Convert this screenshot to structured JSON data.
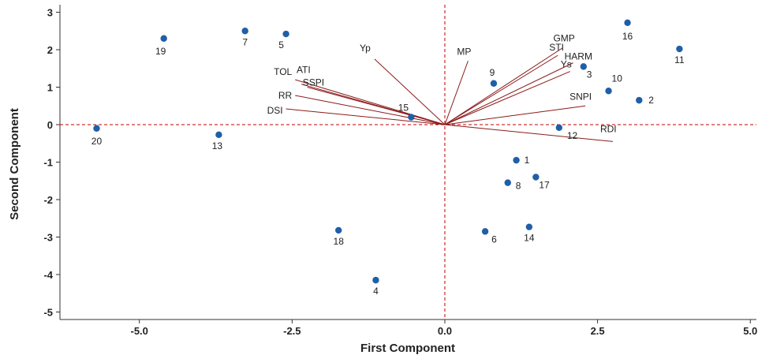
{
  "chart_data": {
    "type": "scatter",
    "subtype": "biplot",
    "title": "",
    "xlabel": "First Component",
    "ylabel": "Second Component",
    "xlim": [
      -6.3,
      5.1
    ],
    "ylim": [
      -5.2,
      3.2
    ],
    "x_ticks": [
      -5.0,
      -2.5,
      0.0,
      2.5,
      5.0
    ],
    "x_tick_labels": [
      "-5.0",
      "-2.5",
      "0.0",
      "2.5",
      "5.0"
    ],
    "y_ticks": [
      3,
      2,
      1,
      0,
      -1,
      -2,
      -3,
      -4,
      -5
    ],
    "y_tick_labels": [
      "3",
      "2",
      "1",
      "0",
      "-1",
      "-2",
      "-3",
      "-4",
      "-5"
    ],
    "reference_lines": {
      "x": 0,
      "y": 0,
      "color": "#c00000",
      "style": "dashed"
    },
    "colors": {
      "point": "#1f5fa8",
      "vector": "#8b1a1a",
      "reference": "#c00000"
    },
    "points": [
      {
        "label": "1",
        "x": 1.17,
        "y": -0.95
      },
      {
        "label": "2",
        "x": 3.18,
        "y": 0.65
      },
      {
        "label": "3",
        "x": 2.27,
        "y": 1.55
      },
      {
        "label": "4",
        "x": -1.13,
        "y": -4.15
      },
      {
        "label": "5",
        "x": -2.6,
        "y": 2.42
      },
      {
        "label": "6",
        "x": 0.66,
        "y": -2.85
      },
      {
        "label": "7",
        "x": -3.27,
        "y": 2.5
      },
      {
        "label": "8",
        "x": 1.03,
        "y": -1.55
      },
      {
        "label": "9",
        "x": 0.8,
        "y": 1.1
      },
      {
        "label": "10",
        "x": 2.68,
        "y": 0.9
      },
      {
        "label": "11",
        "x": 3.84,
        "y": 2.02
      },
      {
        "label": "12",
        "x": 1.87,
        "y": -0.08
      },
      {
        "label": "13",
        "x": -3.7,
        "y": -0.27
      },
      {
        "label": "14",
        "x": 1.38,
        "y": -2.73
      },
      {
        "label": "15",
        "x": -0.55,
        "y": 0.2
      },
      {
        "label": "16",
        "x": 2.99,
        "y": 2.72
      },
      {
        "label": "17",
        "x": 1.49,
        "y": -1.4
      },
      {
        "label": "18",
        "x": -1.74,
        "y": -2.82
      },
      {
        "label": "19",
        "x": -4.6,
        "y": 2.3
      },
      {
        "label": "20",
        "x": -5.7,
        "y": -0.1
      }
    ],
    "vectors": [
      {
        "label": "Yp",
        "x": -1.15,
        "y": 1.75
      },
      {
        "label": "MP",
        "x": 0.38,
        "y": 1.7
      },
      {
        "label": "GMP",
        "x": 1.93,
        "y": 2.05
      },
      {
        "label": "STI",
        "x": 1.85,
        "y": 1.85
      },
      {
        "label": "HARM",
        "x": 2.1,
        "y": 1.65
      },
      {
        "label": "Ys",
        "x": 2.05,
        "y": 1.42
      },
      {
        "label": "SNPI",
        "x": 2.3,
        "y": 0.5
      },
      {
        "label": "RDI",
        "x": 2.75,
        "y": -0.45
      },
      {
        "label": "TOL",
        "x": -2.45,
        "y": 1.2
      },
      {
        "label": "ATI",
        "x": -2.35,
        "y": 1.08
      },
      {
        "label": "SSPI",
        "x": -2.25,
        "y": 1.0
      },
      {
        "label": "RR",
        "x": -2.45,
        "y": 0.78
      },
      {
        "label": "DSI",
        "x": -2.6,
        "y": 0.42
      }
    ]
  }
}
